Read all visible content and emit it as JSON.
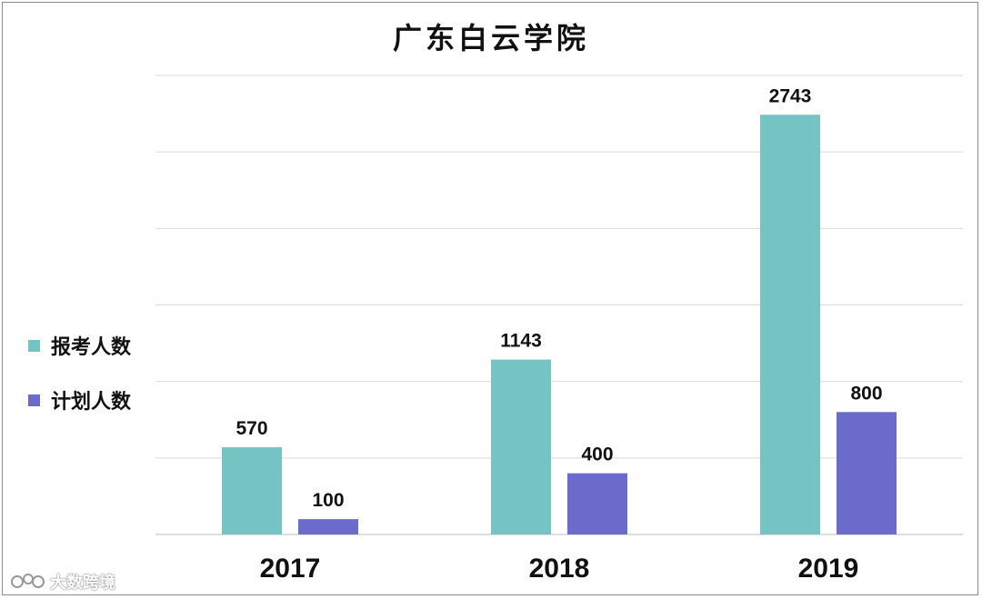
{
  "chart_data": {
    "type": "bar",
    "title": "广东白云学院",
    "categories": [
      "2017",
      "2018",
      "2019"
    ],
    "series": [
      {
        "name": "报考人数",
        "values": [
          570,
          1143,
          2743
        ],
        "color": "#76c3c3"
      },
      {
        "name": "计划人数",
        "values": [
          100,
          400,
          800
        ],
        "color": "#6b6bcc"
      }
    ],
    "ylim": [
      0,
      3000
    ],
    "grid": true,
    "legend": "left"
  },
  "watermark": "大数跨境"
}
